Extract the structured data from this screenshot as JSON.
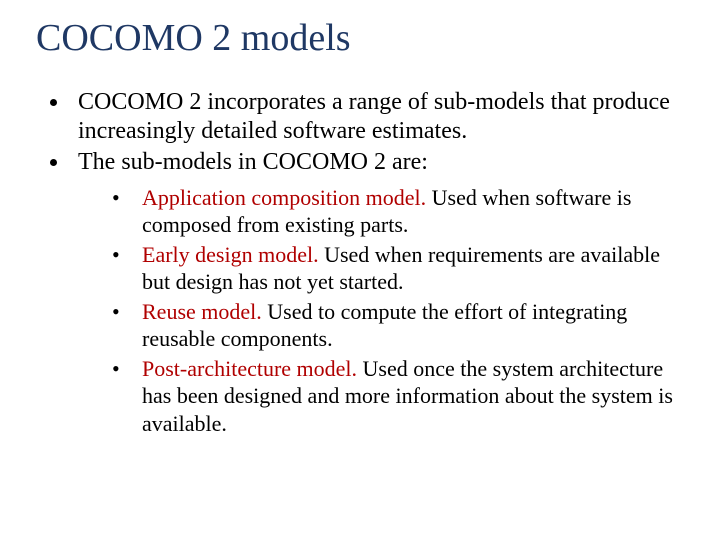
{
  "title_color": "#1f3864",
  "term_color": "#b00000",
  "text_color": "#000000",
  "background_color": "#ffffff",
  "title_fontsize": 38,
  "body_fontsize": 24,
  "sub_fontsize": 22,
  "title": "COCOMO 2 models",
  "points": [
    "COCOMO 2 incorporates a range of sub-models that produce increasingly detailed software estimates.",
    "The sub-models in COCOMO 2 are:"
  ],
  "submodels": [
    {
      "term": "Application composition model.",
      "desc": " Used when software is composed from existing parts."
    },
    {
      "term": "Early design model.",
      "desc": " Used when requirements are available but design has not yet started."
    },
    {
      "term": "Reuse model.",
      "desc": " Used to compute the effort of integrating reusable components."
    },
    {
      "term": "Post-architecture model.",
      "desc": " Used once the system architecture has been designed and more information about the system is available."
    }
  ]
}
